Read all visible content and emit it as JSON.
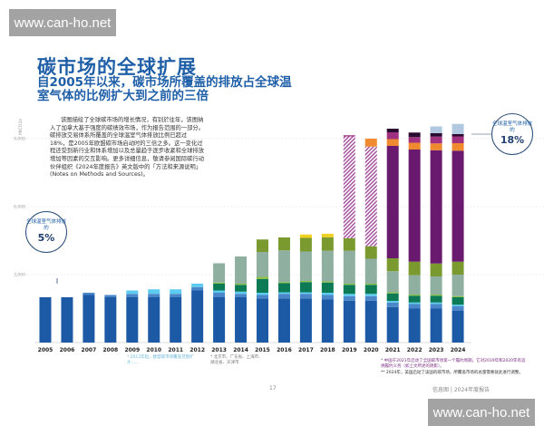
{
  "watermark": "www.can-ho.net",
  "title": "碳市场的全球扩展",
  "subtitle": "自2005年以来，碳市场所覆盖的排放占全球温室气体的比例扩大到之前的三倍",
  "body_text": "该图描绘了全球碳市场的增长情况，有别於往年，该图纳入了加拿大基于强度的碳绩效市场，作为报告范围的一部分。碳排放交易体系所覆盖的全球温室气体排放比例已超过18%，是2005年欧盟碳市场启动时的三倍之多。这一变化过程还受到新行业和体系增加以及总量趋于逐步收紧和全球排放增加等因素的交互影响。更多详细信息，敬请参阅国际碳行动伙伴组织《2024年度报告》英文版中的「方法和来源说明」(Notes on Methods and Sources)。",
  "callouts": [
    {
      "label": "全球温室气体排放的",
      "value": "5%"
    },
    {
      "label": "全球温室气体排放的",
      "value": "18%"
    }
  ],
  "footnotes": {
    "left_1": "* 2013年起，欧盟碳市场覆盖范围扩大……",
    "left_2": "* 北京市、广东省、上海市、湖北省、天津市",
    "right_1": "* 中国于2021年启动了全国碳市场第一个履约周期，它对2019年和2020年有追溯履约义务（如上文所述的阴影）。",
    "right_2": "** 2024年，美国启动了该国的碳市场，所覆盖市场的总量需要就此进行调整。"
  },
  "page_number": "17",
  "footer": "信息图 | 2024年度报告",
  "chart_data": {
    "type": "bar",
    "stacked": true,
    "ylabel": "MtCO2e",
    "ylim": [
      0,
      10000
    ],
    "yticks": [
      "3,000",
      "6,000",
      "9,000"
    ],
    "ytick_values": [
      3000,
      6000,
      9000
    ],
    "grid": true,
    "categories": [
      "2005",
      "2006",
      "2007",
      "2008",
      "2009",
      "2010",
      "2011",
      "2012",
      "2013",
      "2014",
      "2015",
      "2016",
      "2017",
      "2018",
      "2019",
      "2020",
      "2021",
      "2022",
      "2023",
      "2024"
    ],
    "series": [
      {
        "color": "#1c5aa6",
        "values": [
          2000,
          2000,
          2100,
          2000,
          2000,
          2000,
          2000,
          2300,
          2000,
          2000,
          1950,
          1950,
          1950,
          1900,
          1850,
          1850,
          1570,
          1500,
          1500,
          1400
        ]
      },
      {
        "color": "#4a86c8",
        "values": [
          0,
          0,
          100,
          100,
          150,
          150,
          150,
          150,
          200,
          150,
          150,
          200,
          200,
          200,
          200,
          200,
          200,
          200,
          200,
          200
        ]
      },
      {
        "color": "#5ccbf0",
        "values": [
          0,
          0,
          0,
          0,
          150,
          200,
          200,
          150,
          100,
          100,
          100,
          70,
          70,
          100,
          100,
          100,
          70,
          70,
          70,
          70
        ]
      },
      {
        "color": "#0b7a55",
        "values": [
          0,
          0,
          0,
          0,
          0,
          0,
          0,
          0,
          300,
          300,
          600,
          400,
          450,
          450,
          400,
          400,
          330,
          300,
          300,
          330
        ]
      },
      {
        "color": "#8cc04a",
        "values": [
          0,
          0,
          0,
          0,
          0,
          0,
          0,
          0,
          50,
          50,
          100,
          50,
          50,
          50,
          50,
          50,
          50,
          50,
          50,
          50
        ]
      },
      {
        "color": "#8fb0a0",
        "values": [
          0,
          0,
          0,
          0,
          0,
          0,
          0,
          0,
          850,
          1200,
          1100,
          1400,
          1300,
          1350,
          1450,
          1100,
          930,
          850,
          800,
          950
        ]
      },
      {
        "color": "#7a9a30",
        "values": [
          0,
          0,
          0,
          0,
          0,
          0,
          0,
          0,
          0,
          0,
          550,
          570,
          600,
          600,
          550,
          550,
          570,
          600,
          570,
          570
        ]
      },
      {
        "color": "#f0d020",
        "values": [
          0,
          0,
          0,
          0,
          0,
          0,
          0,
          0,
          0,
          0,
          0,
          0,
          150,
          150,
          0,
          0,
          0,
          0,
          0,
          0
        ]
      },
      {
        "color": "#a04a9a",
        "hatched": true,
        "values": [
          0,
          0,
          0,
          0,
          0,
          0,
          0,
          0,
          0,
          0,
          0,
          0,
          0,
          0,
          4500,
          4400,
          0,
          0,
          0,
          0
        ]
      },
      {
        "color": "#6a1a6e",
        "values": [
          0,
          0,
          0,
          0,
          0,
          0,
          0,
          0,
          0,
          0,
          0,
          0,
          0,
          0,
          0,
          0,
          4960,
          4950,
          5000,
          4900
        ]
      },
      {
        "color": "#f08a30",
        "values": [
          0,
          0,
          0,
          0,
          0,
          0,
          0,
          0,
          0,
          0,
          0,
          0,
          0,
          0,
          0,
          350,
          300,
          300,
          300,
          330
        ]
      },
      {
        "color": "#a03080",
        "values": [
          0,
          0,
          0,
          0,
          0,
          0,
          0,
          0,
          0,
          0,
          0,
          0,
          0,
          0,
          50,
          0,
          300,
          250,
          300,
          300
        ]
      },
      {
        "color": "#2a0a30",
        "values": [
          0,
          0,
          0,
          0,
          0,
          0,
          0,
          0,
          0,
          0,
          0,
          0,
          0,
          0,
          0,
          0,
          160,
          200,
          150,
          100
        ]
      },
      {
        "color": "#b0c8e0",
        "values": [
          0,
          0,
          0,
          0,
          0,
          0,
          0,
          0,
          0,
          0,
          0,
          0,
          0,
          0,
          0,
          0,
          0,
          0,
          300,
          450
        ]
      }
    ]
  }
}
